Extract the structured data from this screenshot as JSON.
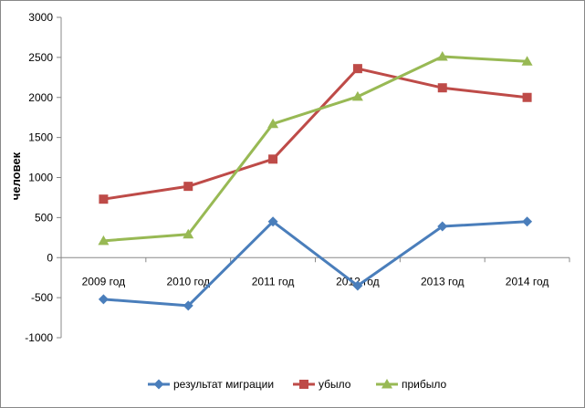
{
  "chart_data": {
    "type": "line",
    "title": "",
    "xlabel": "",
    "ylabel": "человек",
    "ylim": [
      -1000,
      3000
    ],
    "ytick_step": 500,
    "grid": false,
    "legend_position": "bottom",
    "categories": [
      "2009 год",
      "2010 год",
      "2011 год",
      "2012 год",
      "2013 год",
      "2014 год"
    ],
    "series": [
      {
        "name": "результат миграции",
        "color": "#4a7ebb",
        "marker": "diamond",
        "values": [
          -520,
          -600,
          450,
          -350,
          390,
          450
        ]
      },
      {
        "name": "убыло",
        "color": "#be4b48",
        "marker": "square",
        "values": [
          730,
          890,
          1230,
          2360,
          2120,
          2000
        ]
      },
      {
        "name": "прибыло",
        "color": "#98b954",
        "marker": "triangle",
        "values": [
          210,
          290,
          1670,
          2010,
          2510,
          2450
        ]
      }
    ]
  }
}
